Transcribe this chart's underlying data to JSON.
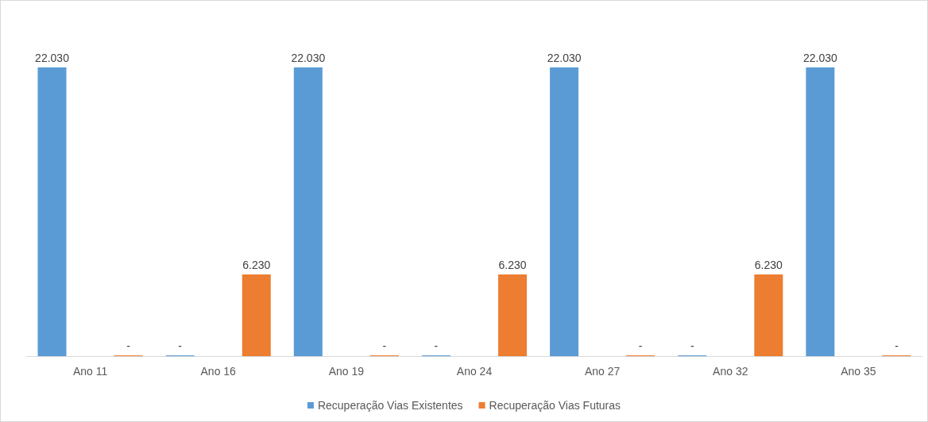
{
  "chart_data": {
    "type": "bar",
    "categories": [
      "Ano 11",
      "Ano 16",
      "Ano 19",
      "Ano 24",
      "Ano 27",
      "Ano 32",
      "Ano 35"
    ],
    "series": [
      {
        "name": "Recuperação Vias Existentes",
        "color": "#5b9bd5",
        "values": [
          22030,
          0,
          22030,
          0,
          22030,
          0,
          22030
        ],
        "value_labels": [
          "22.030",
          "-",
          "22.030",
          "-",
          "22.030",
          "-",
          "22.030"
        ]
      },
      {
        "name": "Recuperação Vias Futuras",
        "color": "#ed7d31",
        "values": [
          0,
          6230,
          0,
          6230,
          0,
          6230,
          0
        ],
        "value_labels": [
          "-",
          "6.230",
          "-",
          "6.230",
          "-",
          "6.230",
          "-"
        ]
      }
    ],
    "legend": "bottom"
  }
}
